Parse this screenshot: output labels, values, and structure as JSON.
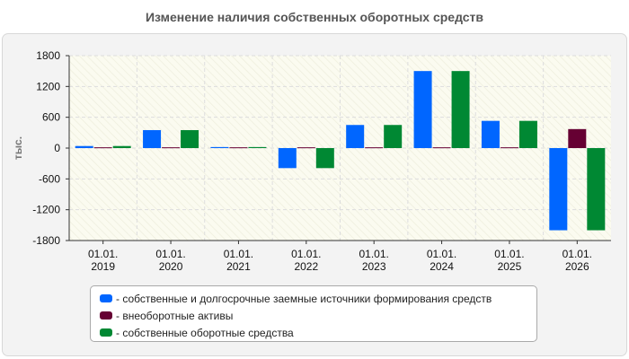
{
  "chart_data": {
    "type": "bar",
    "title": "Изменение наличия собственных оборотных средств",
    "ylabel": "тыс.",
    "xlabel": "",
    "ylim": [
      -1800,
      1800
    ],
    "yticks": [
      1800,
      1200,
      600,
      0,
      -600,
      -1200,
      -1800
    ],
    "categories": [
      [
        "01.01.",
        "2019"
      ],
      [
        "01.01.",
        "2020"
      ],
      [
        "01.01.",
        "2021"
      ],
      [
        "01.01.",
        "2022"
      ],
      [
        "01.01.",
        "2023"
      ],
      [
        "01.01.",
        "2024"
      ],
      [
        "01.01.",
        "2025"
      ],
      [
        "01.01.",
        "2026"
      ]
    ],
    "series": [
      {
        "name": "собственные и долгосрочные заемные источники формирования средств",
        "color": "#0066ff",
        "values": [
          40,
          350,
          20,
          -390,
          450,
          1500,
          530,
          -1600
        ]
      },
      {
        "name": "внеоборотные активы",
        "color": "#660033",
        "values": [
          15,
          15,
          15,
          15,
          15,
          15,
          15,
          370
        ]
      },
      {
        "name": "собственные оборотные средства",
        "color": "#008833",
        "values": [
          40,
          350,
          20,
          -390,
          450,
          1500,
          530,
          -1600
        ]
      }
    ],
    "grid": true,
    "legend_position": "bottom"
  }
}
